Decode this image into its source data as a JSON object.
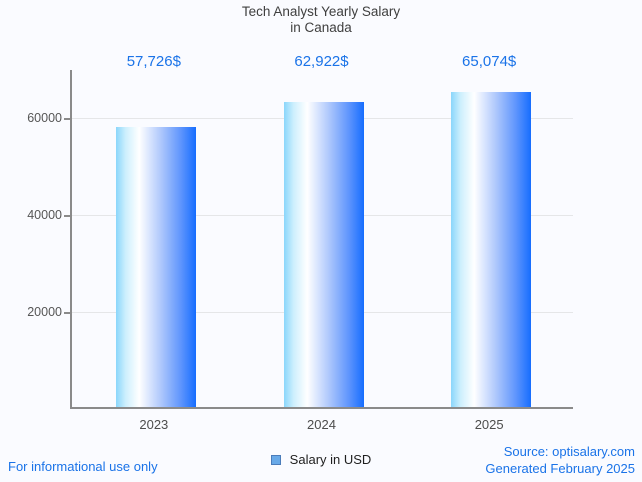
{
  "title": {
    "line1": "Tech Analyst Yearly Salary",
    "line2": "in Canada"
  },
  "chart_data": {
    "type": "bar",
    "title": "Tech Analyst Yearly Salary in Canada",
    "categories": [
      "2023",
      "2024",
      "2025"
    ],
    "values": [
      57726,
      62922,
      65074
    ],
    "value_labels": [
      "57,726$",
      "62,922$",
      "65,074$"
    ],
    "series": [
      {
        "name": "Salary in USD",
        "values": [
          57726,
          62922,
          65074
        ]
      }
    ],
    "xlabel": "",
    "ylabel": "",
    "yticks": [
      20000,
      40000,
      60000
    ],
    "ylim": [
      0,
      70000
    ],
    "grid": true,
    "legend_position": "bottom"
  },
  "legend": {
    "label": "Salary in USD"
  },
  "footer": {
    "left": "For informational use only",
    "source": "Source: optisalary.com",
    "generated": "Generated February 2025"
  },
  "colors": {
    "accent_text": "#1a73e8",
    "bar_gradient_left": "#8ad6fb",
    "bar_gradient_mid": "#ffffff",
    "bar_gradient_right": "#166dfe",
    "legend_swatch_fill": "#68a9e8",
    "legend_swatch_border": "#4b7cba",
    "axis": "#8a8a8a",
    "gridline": "#e5e6e8",
    "tick_text": "#565656",
    "title_text": "#3f3f3f",
    "background": "#fafbff"
  }
}
